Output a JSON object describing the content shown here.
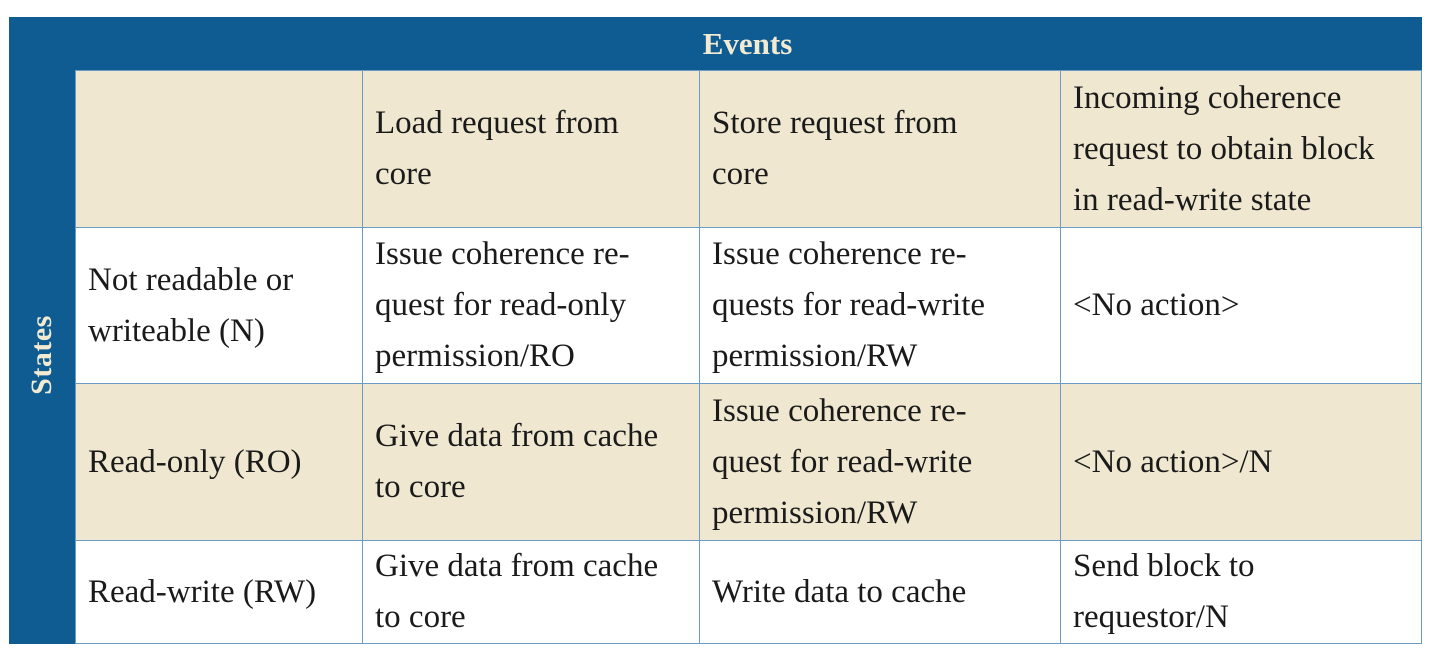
{
  "header": {
    "events_label": "Events",
    "states_label": "States"
  },
  "columns": [
    "",
    "Load request from\ncore",
    "Store request from\ncore",
    "Incoming coherence\nrequest to obtain block\nin read-write state"
  ],
  "rows": [
    {
      "state": "Not readable or\nwriteable (N)",
      "cells": [
        "Issue coherence re-\nquest for read-only\npermission/RO",
        "Issue coherence re-\nquests for read-write\npermission/RW",
        "<No action>"
      ]
    },
    {
      "state": "Read-only (RO)",
      "cells": [
        "Give data from cache\nto core",
        "Issue coherence re-\nquest for read-write\npermission/RW",
        "<No action>/N"
      ]
    },
    {
      "state": "Read-write (RW)",
      "cells": [
        "Give data from cache\nto core",
        "Write data to cache",
        "Send block to\nrequestor/N"
      ]
    }
  ],
  "colors": {
    "frame": "#0f5c92",
    "header_text": "#f3ead2",
    "tan_row": "#efe7cf",
    "white_row": "#ffffff",
    "cell_border": "#6a9cc4"
  }
}
